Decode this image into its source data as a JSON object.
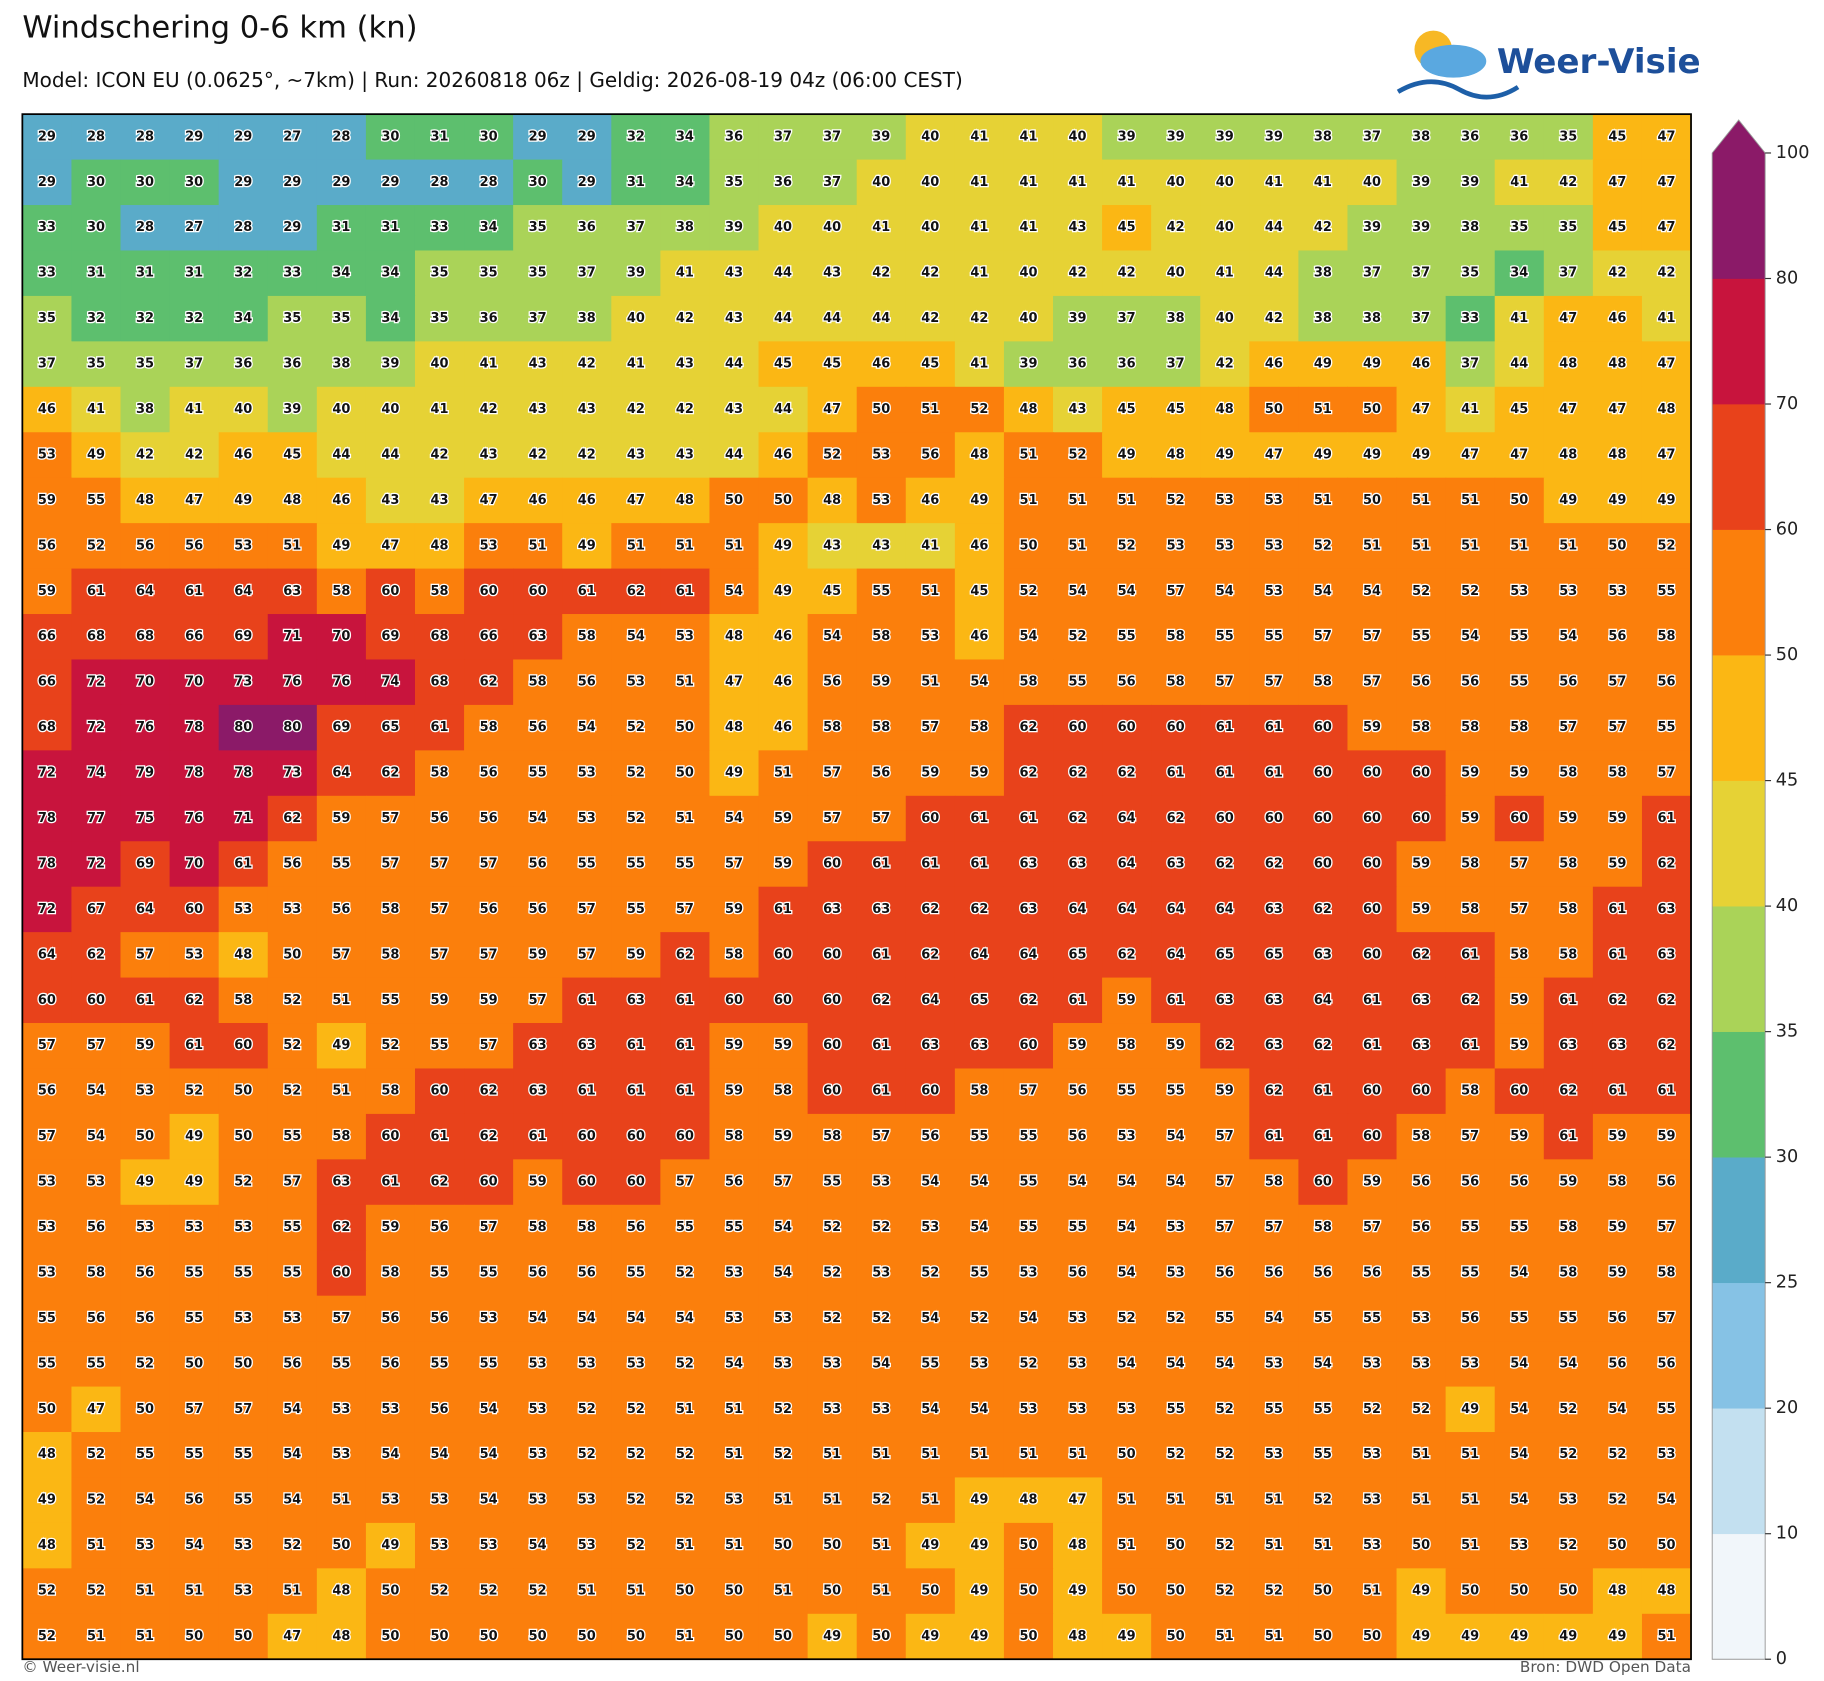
{
  "header": {
    "title": "Windschering 0-6 km (kn)",
    "subtitle": "Model: ICON EU (0.0625°, ~7km)  |  Run: 20260818 06z  |  Geldig: 2026-08-19 04z (06:00 CEST)"
  },
  "logo": "Weer-Visie",
  "map": {
    "values": [
      [
        29,
        28,
        28,
        29,
        29,
        27,
        28,
        30,
        31,
        30,
        29,
        29,
        32,
        34,
        36,
        37,
        37,
        39,
        40,
        41,
        41,
        40,
        39,
        39,
        39,
        39,
        38,
        37,
        38,
        36,
        36,
        35,
        45,
        47
      ],
      [
        29,
        30,
        30,
        30,
        29,
        29,
        29,
        29,
        28,
        28,
        30,
        29,
        31,
        34,
        35,
        36,
        37,
        40,
        40,
        41,
        41,
        41,
        41,
        40,
        40,
        41,
        41,
        40,
        39,
        39,
        41,
        42,
        47,
        47
      ],
      [
        33,
        30,
        28,
        27,
        28,
        29,
        31,
        31,
        33,
        34,
        35,
        36,
        37,
        38,
        39,
        40,
        40,
        41,
        40,
        41,
        41,
        43,
        45,
        42,
        40,
        44,
        42,
        39,
        39,
        38,
        35,
        35,
        45,
        47
      ],
      [
        33,
        31,
        31,
        31,
        32,
        33,
        34,
        34,
        35,
        35,
        35,
        37,
        39,
        41,
        43,
        44,
        43,
        42,
        42,
        41,
        40,
        42,
        42,
        40,
        41,
        44,
        38,
        37,
        37,
        35,
        34,
        37,
        42,
        42
      ],
      [
        35,
        32,
        32,
        32,
        34,
        35,
        35,
        34,
        35,
        36,
        37,
        38,
        40,
        42,
        43,
        44,
        44,
        44,
        42,
        42,
        40,
        39,
        37,
        38,
        40,
        42,
        38,
        38,
        37,
        33,
        41,
        47,
        46,
        41
      ],
      [
        37,
        35,
        35,
        37,
        36,
        36,
        38,
        39,
        40,
        41,
        43,
        42,
        41,
        43,
        44,
        45,
        45,
        46,
        45,
        41,
        39,
        36,
        36,
        37,
        42,
        46,
        49,
        49,
        46,
        37,
        44,
        48,
        48,
        47
      ],
      [
        46,
        41,
        38,
        41,
        40,
        39,
        40,
        40,
        41,
        42,
        43,
        43,
        42,
        42,
        43,
        44,
        47,
        50,
        51,
        52,
        48,
        43,
        45,
        45,
        48,
        50,
        51,
        50,
        47,
        41,
        45,
        47,
        47,
        48
      ],
      [
        53,
        49,
        42,
        42,
        46,
        45,
        44,
        44,
        42,
        43,
        42,
        42,
        43,
        43,
        44,
        46,
        52,
        53,
        56,
        48,
        51,
        52,
        49,
        48,
        49,
        47,
        49,
        49,
        49,
        47,
        47,
        48,
        48,
        47
      ],
      [
        59,
        55,
        48,
        47,
        49,
        48,
        46,
        43,
        43,
        47,
        46,
        46,
        47,
        48,
        50,
        50,
        48,
        53,
        46,
        49,
        51,
        51,
        51,
        52,
        53,
        53,
        51,
        50,
        51,
        51,
        50,
        49,
        49,
        49
      ],
      [
        56,
        52,
        56,
        56,
        53,
        51,
        49,
        47,
        48,
        53,
        51,
        49,
        51,
        51,
        51,
        49,
        43,
        43,
        41,
        46,
        50,
        51,
        52,
        53,
        53,
        53,
        52,
        51,
        51,
        51,
        51,
        51,
        50,
        52
      ],
      [
        59,
        61,
        64,
        61,
        64,
        63,
        58,
        60,
        58,
        60,
        60,
        61,
        62,
        61,
        54,
        49,
        45,
        55,
        51,
        45,
        52,
        54,
        54,
        57,
        54,
        53,
        54,
        54,
        52,
        52,
        53,
        53,
        53,
        55
      ],
      [
        66,
        68,
        68,
        66,
        69,
        71,
        70,
        69,
        68,
        66,
        63,
        58,
        54,
        53,
        48,
        46,
        54,
        58,
        53,
        46,
        54,
        52,
        55,
        58,
        55,
        55,
        57,
        57,
        55,
        54,
        55,
        54,
        56,
        58
      ],
      [
        66,
        72,
        70,
        70,
        73,
        76,
        76,
        74,
        68,
        62,
        58,
        56,
        53,
        51,
        47,
        46,
        56,
        59,
        51,
        54,
        58,
        55,
        56,
        58,
        57,
        57,
        58,
        57,
        56,
        56,
        55,
        56,
        57,
        56
      ],
      [
        68,
        72,
        76,
        78,
        80,
        80,
        69,
        65,
        61,
        58,
        56,
        54,
        52,
        50,
        48,
        46,
        58,
        58,
        57,
        58,
        62,
        60,
        60,
        60,
        61,
        61,
        60,
        59,
        58,
        58,
        58,
        57,
        57,
        55
      ],
      [
        72,
        74,
        79,
        78,
        78,
        73,
        64,
        62,
        58,
        56,
        55,
        53,
        52,
        50,
        49,
        51,
        57,
        56,
        59,
        59,
        62,
        62,
        62,
        61,
        61,
        61,
        60,
        60,
        60,
        59,
        59,
        58,
        58,
        57
      ],
      [
        78,
        77,
        75,
        76,
        71,
        62,
        59,
        57,
        56,
        56,
        54,
        53,
        52,
        51,
        54,
        59,
        57,
        57,
        60,
        61,
        61,
        62,
        64,
        62,
        60,
        60,
        60,
        60,
        60,
        59,
        60,
        59,
        59,
        61
      ],
      [
        78,
        72,
        69,
        70,
        61,
        56,
        55,
        57,
        57,
        57,
        56,
        55,
        55,
        55,
        57,
        59,
        60,
        61,
        61,
        61,
        63,
        63,
        64,
        63,
        62,
        62,
        60,
        60,
        59,
        58,
        57,
        58,
        59,
        62
      ],
      [
        72,
        67,
        64,
        60,
        53,
        53,
        56,
        58,
        57,
        56,
        56,
        57,
        55,
        57,
        59,
        61,
        63,
        63,
        62,
        62,
        63,
        64,
        64,
        64,
        64,
        63,
        62,
        60,
        59,
        58,
        57,
        58,
        61,
        63
      ],
      [
        64,
        62,
        57,
        53,
        48,
        50,
        57,
        58,
        57,
        57,
        59,
        57,
        59,
        62,
        58,
        60,
        60,
        61,
        62,
        64,
        64,
        65,
        62,
        64,
        65,
        65,
        63,
        60,
        62,
        61,
        58,
        58,
        61,
        63
      ],
      [
        60,
        60,
        61,
        62,
        58,
        52,
        51,
        55,
        59,
        59,
        57,
        61,
        63,
        61,
        60,
        60,
        60,
        62,
        64,
        65,
        62,
        61,
        59,
        61,
        63,
        63,
        64,
        61,
        63,
        62,
        59,
        61,
        62,
        62
      ],
      [
        57,
        57,
        59,
        61,
        60,
        52,
        49,
        52,
        55,
        57,
        63,
        63,
        61,
        61,
        59,
        59,
        60,
        61,
        63,
        63,
        60,
        59,
        58,
        59,
        62,
        63,
        62,
        61,
        63,
        61,
        59,
        63,
        63,
        62
      ],
      [
        56,
        54,
        53,
        52,
        50,
        52,
        51,
        58,
        60,
        62,
        63,
        61,
        61,
        61,
        59,
        58,
        60,
        61,
        60,
        58,
        57,
        56,
        55,
        55,
        59,
        62,
        61,
        60,
        60,
        58,
        60,
        62,
        61,
        61
      ],
      [
        57,
        54,
        50,
        49,
        50,
        55,
        58,
        60,
        61,
        62,
        61,
        60,
        60,
        60,
        58,
        59,
        58,
        57,
        56,
        55,
        55,
        56,
        53,
        54,
        57,
        61,
        61,
        60,
        58,
        57,
        59,
        61,
        59,
        59
      ],
      [
        53,
        53,
        49,
        49,
        52,
        57,
        63,
        61,
        62,
        60,
        59,
        60,
        60,
        57,
        56,
        57,
        55,
        53,
        54,
        54,
        55,
        54,
        54,
        54,
        57,
        58,
        60,
        59,
        56,
        56,
        56,
        59,
        58,
        56
      ],
      [
        53,
        56,
        53,
        53,
        53,
        55,
        62,
        59,
        56,
        57,
        58,
        58,
        56,
        55,
        55,
        54,
        52,
        52,
        53,
        54,
        55,
        55,
        54,
        53,
        57,
        57,
        58,
        57,
        56,
        55,
        55,
        58,
        59,
        57
      ],
      [
        53,
        58,
        56,
        55,
        55,
        55,
        60,
        58,
        55,
        55,
        56,
        56,
        55,
        52,
        53,
        54,
        52,
        53,
        52,
        55,
        53,
        56,
        54,
        53,
        56,
        56,
        56,
        56,
        55,
        55,
        54,
        58,
        59,
        58
      ],
      [
        55,
        56,
        56,
        55,
        53,
        53,
        57,
        56,
        56,
        53,
        54,
        54,
        54,
        54,
        53,
        53,
        52,
        52,
        54,
        52,
        54,
        53,
        52,
        52,
        55,
        54,
        55,
        55,
        53,
        56,
        55,
        55,
        56,
        57
      ],
      [
        55,
        55,
        52,
        50,
        50,
        56,
        55,
        56,
        55,
        55,
        53,
        53,
        53,
        52,
        54,
        53,
        53,
        54,
        55,
        53,
        52,
        53,
        54,
        54,
        54,
        53,
        54,
        53,
        53,
        53,
        54,
        54,
        56,
        56
      ],
      [
        50,
        47,
        50,
        57,
        57,
        54,
        53,
        53,
        56,
        54,
        53,
        52,
        52,
        51,
        51,
        52,
        53,
        53,
        54,
        54,
        53,
        53,
        53,
        55,
        52,
        55,
        55,
        52,
        52,
        49,
        54,
        52,
        54,
        55
      ],
      [
        48,
        52,
        55,
        55,
        55,
        54,
        53,
        54,
        54,
        54,
        53,
        52,
        52,
        52,
        51,
        52,
        51,
        51,
        51,
        51,
        51,
        51,
        50,
        52,
        52,
        53,
        55,
        53,
        51,
        51,
        54,
        52,
        52,
        53
      ],
      [
        49,
        52,
        54,
        56,
        55,
        54,
        51,
        53,
        53,
        54,
        53,
        53,
        52,
        52,
        53,
        51,
        51,
        52,
        51,
        49,
        48,
        47,
        51,
        51,
        51,
        51,
        52,
        53,
        51,
        51,
        54,
        53,
        52,
        54
      ],
      [
        48,
        51,
        53,
        54,
        53,
        52,
        50,
        49,
        53,
        53,
        54,
        53,
        52,
        51,
        51,
        50,
        50,
        51,
        49,
        49,
        50,
        48,
        51,
        50,
        52,
        51,
        51,
        53,
        50,
        51,
        53,
        52,
        50,
        50
      ],
      [
        52,
        52,
        51,
        51,
        53,
        51,
        48,
        50,
        52,
        52,
        52,
        51,
        51,
        50,
        50,
        51,
        50,
        51,
        50,
        49,
        50,
        49,
        50,
        50,
        52,
        52,
        50,
        51,
        49,
        50,
        50,
        50,
        48,
        48
      ],
      [
        52,
        51,
        51,
        50,
        50,
        47,
        48,
        50,
        50,
        50,
        50,
        50,
        50,
        51,
        50,
        50,
        49,
        50,
        49,
        49,
        50,
        48,
        49,
        50,
        51,
        51,
        50,
        50,
        49,
        49,
        49,
        49,
        49,
        51
      ]
    ]
  },
  "colorbar": {
    "levels": [
      0,
      10,
      20,
      25,
      30,
      35,
      40,
      45,
      50,
      60,
      70,
      80,
      100
    ],
    "colors": [
      "#f1f6fa",
      "#c3e0f0",
      "#86c2e5",
      "#5aabc9",
      "#5dbf6e",
      "#aad358",
      "#e6d235",
      "#fbb714",
      "#fb7f0c",
      "#e8421b",
      "#c8143d",
      "#8b1a68"
    ]
  },
  "footer": {
    "left": "© Weer-visie.nl",
    "right": "Bron: DWD Open Data"
  }
}
